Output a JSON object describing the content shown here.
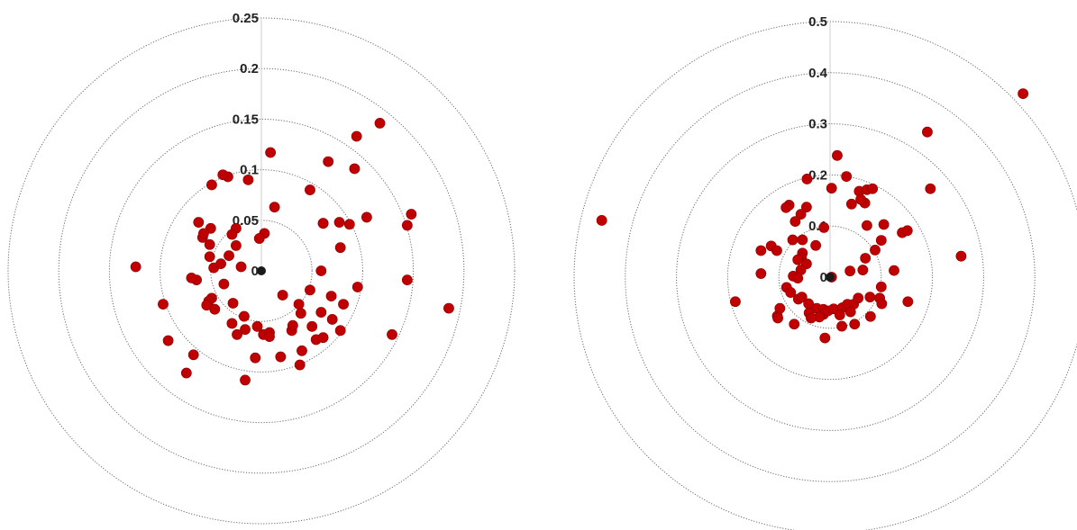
{
  "chart_data": [
    {
      "type": "scatter",
      "coordinate_system": "polar",
      "radial_ticks": [
        "0",
        "0.05",
        "0.1",
        "0.15",
        "0.2",
        "0.25"
      ],
      "rlim": [
        0,
        0.25
      ],
      "grid": true,
      "colors": {
        "points": "#c00000",
        "rings": "#6b6b6b"
      },
      "series": [
        {
          "points": [
            [
              0.009,
              0.117
            ],
            [
              0.066,
              0.108
            ],
            [
              0.094,
              0.133
            ],
            [
              0.048,
              0.08
            ],
            [
              0.117,
              0.146
            ],
            [
              0.092,
              0.101
            ],
            [
              -0.013,
              0.09
            ],
            [
              -0.033,
              0.093
            ],
            [
              -0.038,
              0.095
            ],
            [
              -0.049,
              0.085
            ],
            [
              0.013,
              0.063
            ],
            [
              0.077,
              0.048
            ],
            [
              0.104,
              0.053
            ],
            [
              0.061,
              0.047
            ],
            [
              0.087,
              0.046
            ],
            [
              0.148,
              0.056
            ],
            [
              0.144,
              0.045
            ],
            [
              0.061,
              0.047
            ],
            [
              -0.05,
              0.042
            ],
            [
              -0.058,
              0.033
            ],
            [
              -0.062,
              0.048
            ],
            [
              -0.057,
              0.037
            ],
            [
              -0.025,
              0.042
            ],
            [
              -0.029,
              0.036
            ],
            [
              0.003,
              0.037
            ],
            [
              -0.002,
              0.032
            ],
            [
              -0.051,
              0.026
            ],
            [
              -0.025,
              0.025
            ],
            [
              -0.032,
              0.015
            ],
            [
              0.078,
              0.023
            ],
            [
              0.059,
              0.0
            ],
            [
              -0.051,
              0.014
            ],
            [
              -0.047,
              0.003
            ],
            [
              -0.04,
              0.007
            ],
            [
              -0.02,
              0.004
            ],
            [
              -0.124,
              0.004
            ],
            [
              -0.064,
              -0.009
            ],
            [
              -0.069,
              -0.007
            ],
            [
              -0.037,
              -0.013
            ],
            [
              0.095,
              -0.016
            ],
            [
              0.144,
              -0.009
            ],
            [
              0.185,
              -0.037
            ],
            [
              0.048,
              -0.019
            ],
            [
              0.069,
              -0.025
            ],
            [
              0.081,
              -0.033
            ],
            [
              0.021,
              -0.024
            ],
            [
              0.037,
              -0.033
            ],
            [
              0.059,
              -0.041
            ],
            [
              0.039,
              -0.042
            ],
            [
              0.07,
              -0.048
            ],
            [
              -0.049,
              -0.027
            ],
            [
              -0.052,
              -0.03
            ],
            [
              -0.054,
              -0.034
            ],
            [
              -0.046,
              -0.038
            ],
            [
              -0.028,
              -0.032
            ],
            [
              -0.017,
              -0.045
            ],
            [
              -0.029,
              -0.052
            ],
            [
              -0.016,
              -0.058
            ],
            [
              -0.024,
              -0.063
            ],
            [
              -0.004,
              -0.055
            ],
            [
              0.002,
              -0.063
            ],
            [
              0.008,
              -0.061
            ],
            [
              0.03,
              -0.059
            ],
            [
              0.031,
              -0.054
            ],
            [
              0.05,
              -0.055
            ],
            [
              0.054,
              -0.068
            ],
            [
              0.061,
              -0.066
            ],
            [
              0.078,
              -0.059
            ],
            [
              0.008,
              -0.065
            ],
            [
              0.04,
              -0.079
            ],
            [
              0.129,
              -0.063
            ],
            [
              -0.097,
              -0.033
            ],
            [
              -0.092,
              -0.069
            ],
            [
              -0.067,
              -0.083
            ],
            [
              -0.074,
              -0.101
            ],
            [
              -0.006,
              -0.086
            ],
            [
              0.019,
              -0.085
            ],
            [
              0.038,
              -0.093
            ],
            [
              -0.016,
              -0.108
            ]
          ]
        }
      ]
    },
    {
      "type": "scatter",
      "coordinate_system": "polar",
      "radial_ticks": [
        "0",
        "0.1",
        "0.2",
        "0.3",
        "0.4",
        "0.5"
      ],
      "rlim": [
        0,
        0.5
      ],
      "grid": true,
      "colors": {
        "points": "#c00000",
        "rings": "#6b6b6b"
      },
      "series": [
        {
          "points": [
            [
              0.377,
              0.359
            ],
            [
              0.19,
              0.284
            ],
            [
              0.196,
              0.173
            ],
            [
              0.256,
              0.041
            ],
            [
              0.105,
              0.103
            ],
            [
              -0.446,
              0.111
            ],
            [
              0.003,
              0.174
            ],
            [
              0.032,
              0.197
            ],
            [
              0.014,
              0.238
            ],
            [
              0.057,
              0.168
            ],
            [
              0.068,
              0.145
            ],
            [
              0.072,
              0.171
            ],
            [
              0.083,
              0.173
            ],
            [
              0.06,
              0.152
            ],
            [
              0.042,
              0.143
            ],
            [
              -0.045,
              0.192
            ],
            [
              -0.08,
              0.141
            ],
            [
              -0.086,
              0.136
            ],
            [
              -0.046,
              0.137
            ],
            [
              -0.057,
              0.123
            ],
            [
              -0.068,
              0.109
            ],
            [
              -0.012,
              0.097
            ],
            [
              -0.028,
              0.062
            ],
            [
              -0.054,
              0.073
            ],
            [
              -0.115,
              0.061
            ],
            [
              -0.135,
              0.052
            ],
            [
              -0.104,
              0.052
            ],
            [
              -0.073,
              0.073
            ],
            [
              -0.054,
              0.047
            ],
            [
              -0.056,
              0.038
            ],
            [
              0.072,
              0.101
            ],
            [
              0.1,
              0.072
            ],
            [
              0.141,
              0.087
            ],
            [
              0.151,
              0.091
            ],
            [
              0.088,
              0.053
            ],
            [
              0.125,
              0.013
            ],
            [
              0.003,
              0.0
            ],
            [
              -0.063,
              0.034
            ],
            [
              -0.046,
              0.026
            ],
            [
              -0.057,
              0.014
            ],
            [
              -0.135,
              0.007
            ],
            [
              -0.072,
              0.002
            ],
            [
              -0.063,
              -0.002
            ],
            [
              0.064,
              0.014
            ],
            [
              0.069,
              0.037
            ],
            [
              0.039,
              0.012
            ],
            [
              -0.185,
              -0.048
            ],
            [
              -0.085,
              -0.02
            ],
            [
              -0.077,
              -0.03
            ],
            [
              -0.062,
              -0.043
            ],
            [
              -0.055,
              -0.039
            ],
            [
              -0.042,
              -0.052
            ],
            [
              -0.026,
              -0.061
            ],
            [
              -0.013,
              -0.063
            ],
            [
              -0.013,
              -0.073
            ],
            [
              -0.004,
              -0.066
            ],
            [
              0.007,
              -0.062
            ],
            [
              0.024,
              -0.06
            ],
            [
              0.034,
              -0.053
            ],
            [
              0.046,
              -0.053
            ],
            [
              0.055,
              -0.041
            ],
            [
              0.078,
              -0.039
            ],
            [
              0.097,
              -0.041
            ],
            [
              0.1,
              -0.019
            ],
            [
              0.152,
              -0.048
            ],
            [
              0.101,
              -0.052
            ],
            [
              0.04,
              -0.068
            ],
            [
              0.019,
              -0.074
            ],
            [
              -0.07,
              -0.092
            ],
            [
              -0.103,
              -0.076
            ],
            [
              -0.021,
              -0.078
            ],
            [
              -0.041,
              -0.07
            ],
            [
              0.048,
              -0.092
            ],
            [
              0.079,
              -0.077
            ],
            [
              -0.102,
              -0.08
            ],
            [
              -0.098,
              -0.061
            ],
            [
              -0.037,
              -0.08
            ],
            [
              -0.01,
              -0.119
            ],
            [
              0.023,
              -0.096
            ]
          ]
        }
      ]
    }
  ]
}
